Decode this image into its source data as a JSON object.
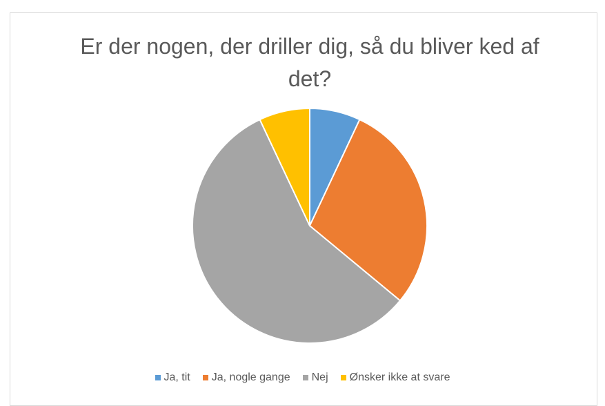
{
  "chart_data": {
    "type": "pie",
    "title": "Er der nogen, der driller dig, så du bliver ked af det?",
    "categories": [
      "Ja, tit",
      "Ja, nogle gange",
      "Nej",
      "Ønsker ikke at svare"
    ],
    "values": [
      7,
      29,
      57,
      7
    ],
    "colors": [
      "#5b9bd5",
      "#ed7d31",
      "#a5a5a5",
      "#ffc000"
    ],
    "legend": "bottom"
  }
}
